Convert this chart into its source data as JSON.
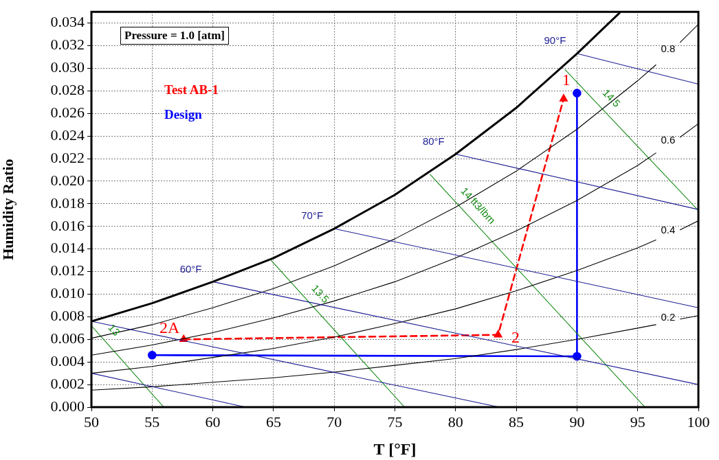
{
  "chart_data": {
    "type": "line",
    "xlabel": "T [°F]",
    "ylabel": "Humidity Ratio",
    "xlim": [
      50,
      100
    ],
    "xticks": [
      50,
      55,
      60,
      65,
      70,
      75,
      80,
      85,
      90,
      95,
      100
    ],
    "ylim": [
      0,
      0.035
    ],
    "yticks": [
      {
        "value": 0,
        "label": "0.000"
      },
      {
        "value": 0.002,
        "label": "0.002"
      },
      {
        "value": 0.004,
        "label": "0.004"
      },
      {
        "value": 0.006,
        "label": "0.006"
      },
      {
        "value": 0.008,
        "label": "0.008"
      },
      {
        "value": 0.01,
        "label": "0.010"
      },
      {
        "value": 0.012,
        "label": "0.012"
      },
      {
        "value": 0.014,
        "label": "0.014"
      },
      {
        "value": 0.016,
        "label": "0.016"
      },
      {
        "value": 0.018,
        "label": "0.018"
      },
      {
        "value": 0.02,
        "label": "0.020"
      },
      {
        "value": 0.022,
        "label": "0.022"
      },
      {
        "value": 0.024,
        "label": "0.024"
      },
      {
        "value": 0.026,
        "label": "0.026"
      },
      {
        "value": 0.028,
        "label": "0.028"
      },
      {
        "value": 0.03,
        "label": "0.030"
      },
      {
        "value": 0.032,
        "label": "0.032"
      },
      {
        "value": 0.034,
        "label": "0.034"
      }
    ],
    "grid": true,
    "legend": "top left",
    "marker": "none",
    "line_style": "solid",
    "series": [
      {
        "color": "#000000",
        "x": [
          50,
          55,
          60,
          65,
          70,
          75,
          80,
          85,
          90,
          93.5
        ],
        "values": [
          0.0076,
          0.0092,
          0.0111,
          0.0132,
          0.0158,
          0.0188,
          0.0224,
          0.0265,
          0.0313,
          0.0349
        ]
      },
      {
        "color": "#1c1c94",
        "x": [
          50,
          62.7
        ],
        "values": [
          0.003,
          0
        ]
      },
      {
        "color": "#1c1c94",
        "x": [
          50,
          83.6
        ],
        "values": [
          0.0076,
          0
        ]
      },
      {
        "name": "60°F",
        "color": "#1c1c94",
        "x": [
          60,
          100
        ],
        "values": [
          0.0111,
          0.002
        ]
      },
      {
        "name": "70°F",
        "color": "#1c1c94",
        "x": [
          70,
          100
        ],
        "values": [
          0.0158,
          0.0088
        ]
      },
      {
        "name": "80°F",
        "color": "#1c1c94",
        "x": [
          80,
          100
        ],
        "values": [
          0.0224,
          0.0175
        ]
      },
      {
        "name": "90°F",
        "color": "#1c1c94",
        "x": [
          90,
          100
        ],
        "values": [
          0.0313,
          0.0286
        ]
      },
      {
        "name": "0.2",
        "color": "#000000",
        "x": [
          50,
          55,
          60,
          65,
          70,
          75,
          80,
          85,
          90,
          95,
          96.5,
          97.5,
          98.5,
          100
        ],
        "values": [
          0.0015,
          0.0018,
          0.0022,
          0.0026,
          0.0031,
          0.0037,
          0.0043,
          0.0051,
          0.006,
          0.007,
          0.0073,
          null,
          0.0078,
          0.0081
        ]
      },
      {
        "name": "0.4",
        "color": "#000000",
        "x": [
          50,
          55,
          60,
          65,
          70,
          75,
          80,
          85,
          90,
          95,
          96.5,
          97.5,
          98.5,
          100
        ],
        "values": [
          0.003,
          0.0036,
          0.0044,
          0.0052,
          0.0062,
          0.0074,
          0.0087,
          0.0103,
          0.0121,
          0.0141,
          0.0148,
          null,
          0.0157,
          0.0165
        ]
      },
      {
        "name": "0.6",
        "color": "#000000",
        "x": [
          50,
          55,
          60,
          65,
          70,
          75,
          80,
          85,
          90,
          95,
          96.5,
          97.5,
          98.5,
          100
        ],
        "values": [
          0.0046,
          0.0055,
          0.0066,
          0.0079,
          0.0094,
          0.0111,
          0.0132,
          0.0156,
          0.0183,
          0.0214,
          0.0225,
          null,
          0.0239,
          0.0251
        ]
      },
      {
        "name": "0.8",
        "color": "#000000",
        "x": [
          50,
          55,
          60,
          65,
          70,
          75,
          80,
          85,
          90,
          95,
          96.5,
          97.5,
          98.5,
          100
        ],
        "values": [
          0.0061,
          0.0073,
          0.0088,
          0.0105,
          0.0125,
          0.0149,
          0.0177,
          0.0209,
          0.0246,
          0.0289,
          0.0303,
          null,
          0.0323,
          0.0339
        ]
      },
      {
        "name": "13",
        "color": "#138a13",
        "x": [
          50,
          51,
          55.96
        ],
        "values": [
          0.0072,
          0.006,
          0
        ]
      },
      {
        "name": "13.5",
        "color": "#138a13",
        "x": [
          64.8,
          68,
          75.8
        ],
        "values": [
          0.013,
          0.0092,
          0
        ]
      },
      {
        "name": "14 ft3/lbm",
        "color": "#138a13",
        "x": [
          77.9,
          81,
          95.6
        ],
        "values": [
          0.0206,
          0.017,
          0
        ]
      },
      {
        "name": "14.5",
        "color": "#138a13",
        "x": [
          89,
          92,
          100
        ],
        "values": [
          0.0299,
          0.0265,
          0.0174
        ]
      },
      {
        "name": "Test AB-1",
        "color": "#ff0000",
        "marker": "triangle",
        "line_style": "dashed",
        "x": [
          57.6,
          83.5,
          88.9
        ],
        "values": [
          0.006,
          0.0064,
          0.0273
        ]
      },
      {
        "name": "Design",
        "color": "#0000ff",
        "marker": "circle",
        "x": [
          55,
          90,
          90
        ],
        "values": [
          0.0046,
          0.0045,
          0.0278
        ]
      }
    ],
    "annotations": [
      "Pressure = 1.0 [atm]",
      {
        "text": "2A",
        "x": 57.6,
        "y": 0.006
      },
      {
        "text": "2",
        "x": 83.5,
        "y": 0.0064
      },
      {
        "text": "1",
        "x": 88.9,
        "y": 0.0273
      }
    ]
  }
}
